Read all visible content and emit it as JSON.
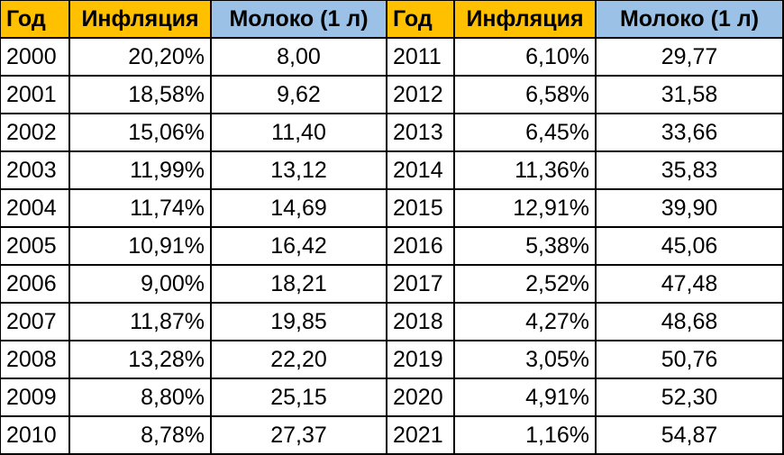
{
  "table": {
    "header": [
      "Год",
      "Инфляция",
      "Молоко (1 л)",
      "Год",
      "Инфляция",
      "Молоко (1 л)"
    ],
    "rows": [
      [
        "2000",
        "20,20%",
        "8,00",
        "2011",
        "6,10%",
        "29,77"
      ],
      [
        "2001",
        "18,58%",
        "9,62",
        "2012",
        "6,58%",
        "31,58"
      ],
      [
        "2002",
        "15,06%",
        "11,40",
        "2013",
        "6,45%",
        "33,66"
      ],
      [
        "2003",
        "11,99%",
        "13,12",
        "2014",
        "11,36%",
        "35,83"
      ],
      [
        "2004",
        "11,74%",
        "14,69",
        "2015",
        "12,91%",
        "39,90"
      ],
      [
        "2005",
        "10,91%",
        "16,42",
        "2016",
        "5,38%",
        "45,06"
      ],
      [
        "2006",
        "9,00%",
        "18,21",
        "2017",
        "2,52%",
        "47,48"
      ],
      [
        "2007",
        "11,87%",
        "19,85",
        "2018",
        "4,27%",
        "48,68"
      ],
      [
        "2008",
        "13,28%",
        "22,20",
        "2019",
        "3,05%",
        "50,76"
      ],
      [
        "2009",
        "8,80%",
        "25,15",
        "2020",
        "4,91%",
        "52,30"
      ],
      [
        "2010",
        "8,78%",
        "27,37",
        "2021",
        "1,16%",
        "54,87"
      ]
    ]
  }
}
